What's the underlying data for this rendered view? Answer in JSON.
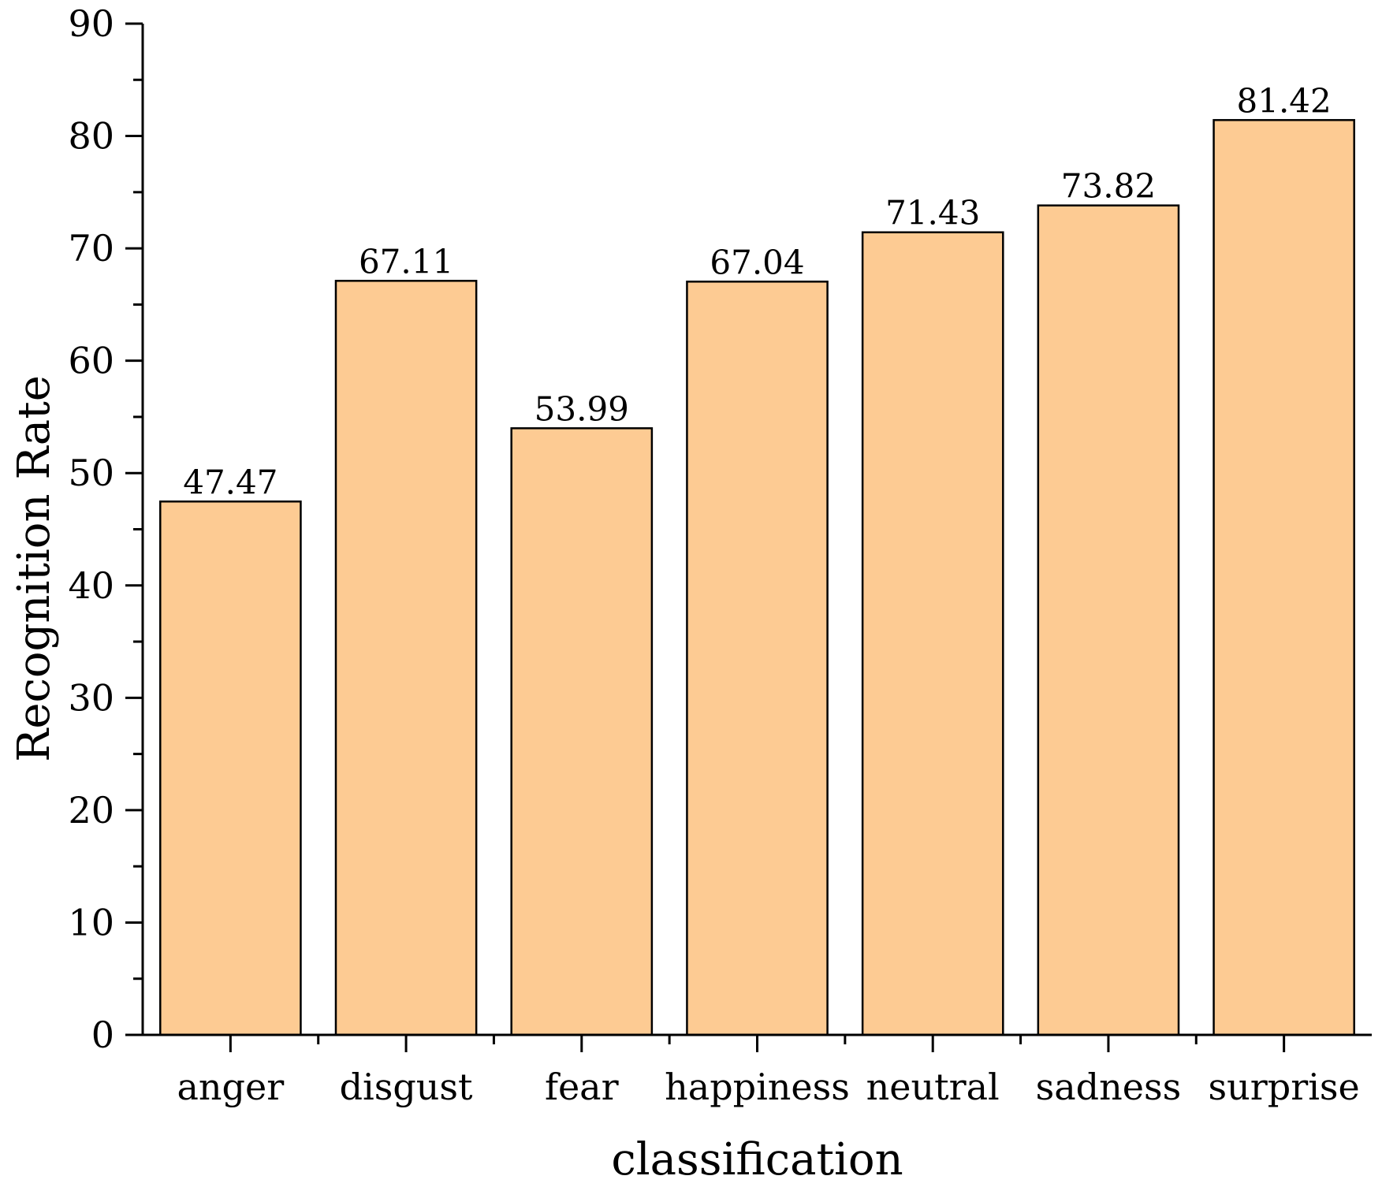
{
  "chart_data": {
    "type": "bar",
    "title": "",
    "xlabel": "classification",
    "ylabel": "Recognition Rate",
    "categories": [
      "anger",
      "disgust",
      "fear",
      "happiness",
      "neutral",
      "sadness",
      "surprise"
    ],
    "values": [
      47.47,
      67.11,
      53.99,
      67.04,
      71.43,
      73.82,
      81.42
    ],
    "value_labels": [
      "47.47",
      "67.11",
      "53.99",
      "67.04",
      "71.43",
      "73.82",
      "81.42"
    ],
    "ylim": [
      0,
      90
    ],
    "yticks": [
      0,
      10,
      20,
      30,
      40,
      50,
      60,
      70,
      80,
      90
    ],
    "grid": false,
    "colors": {
      "bar_fill": "#FDCB93",
      "bar_stroke": "#000000",
      "axis": "#000000"
    }
  }
}
